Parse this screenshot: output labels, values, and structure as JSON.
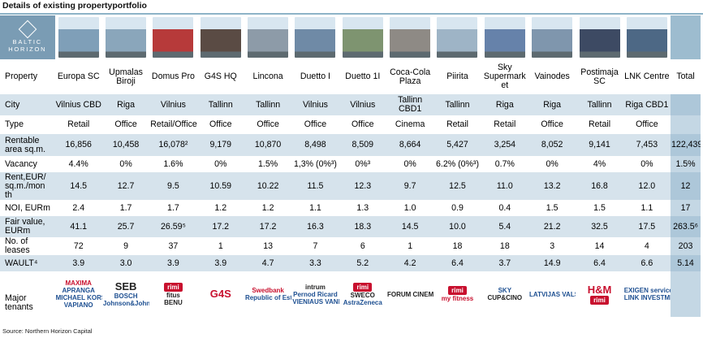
{
  "title": "Details of existing propertyportfolio",
  "brand": {
    "line1": "BALTIC",
    "line2": "HORIZON"
  },
  "header": {
    "label": "Property",
    "properties": [
      "Europa SC",
      "Upmalas Biroji",
      "Domus Pro",
      "G4S HQ",
      "Lincona",
      "Duetto I",
      "Duetto 1I",
      "Coca-Cola Plaza",
      "Piirita",
      "Sky Supermark et",
      "Vainodes",
      "Postimaja SC",
      "LNK Centre"
    ],
    "total": "Total"
  },
  "thumb_colors": [
    "#7f9fb8",
    "#8aa6bb",
    "#b73a3a",
    "#5a4b44",
    "#8d9ba8",
    "#6f8aa6",
    "#7e9470",
    "#8e8a85",
    "#9eb4c6",
    "#6682aa",
    "#7f96ad",
    "#3d4a63",
    "#4d6885"
  ],
  "rows": [
    {
      "label": "City",
      "values": [
        "Vilnius CBD",
        "Riga",
        "Vilnius",
        "Tallinn",
        "Tallinn",
        "Vilnius",
        "Vilnius",
        "Tallinn CBD1",
        "Tallinn",
        "Riga",
        "Riga",
        "Tallinn",
        "Riga CBD1"
      ],
      "total": ""
    },
    {
      "label": "Type",
      "values": [
        "Retail",
        "Office",
        "Retail/Office",
        "Office",
        "Office",
        "Office",
        "Office",
        "Cinema",
        "Retail",
        "Retail",
        "Office",
        "Retail",
        "Office"
      ],
      "total": ""
    },
    {
      "label": "Rentable area sq.m.",
      "values": [
        "16,856",
        "10,458",
        "16,078²",
        "9,179",
        "10,870",
        "8,498",
        "8,509",
        "8,664",
        "5,427",
        "3,254",
        "8,052",
        "9,141",
        "7,453"
      ],
      "total": "122,439"
    },
    {
      "label": "Vacancy",
      "values": [
        "4.4%",
        "0%",
        "1.6%",
        "0%",
        "1.5%",
        "1,3% (0%³)",
        "0%³",
        "0%",
        "6.2% (0%³)",
        "0.7%",
        "0%",
        "4%",
        "0%"
      ],
      "total": "1.5%"
    },
    {
      "label": "Rent,EUR/ sq.m./mon th",
      "values": [
        "14.5",
        "12.7",
        "9.5",
        "10.59",
        "10.22",
        "11.5",
        "12.3",
        "9.7",
        "12.5",
        "11.0",
        "13.2",
        "16.8",
        "12.0"
      ],
      "total": "12"
    },
    {
      "label": "NOI, EURm",
      "values": [
        "2.4",
        "1.7",
        "1.7",
        "1.2",
        "1.2",
        "1.1",
        "1.3",
        "1.0",
        "0.9",
        "0.4",
        "1.5",
        "1.5",
        "1.1"
      ],
      "total": "17"
    },
    {
      "label": "Fair value, EURm",
      "values": [
        "41.1",
        "25.7",
        "26.59⁵",
        "17.2",
        "17.2",
        "16.3",
        "18.3",
        "14.5",
        "10.0",
        "5.4",
        "21.2",
        "32.5",
        "17.5"
      ],
      "total": "263.5⁶"
    },
    {
      "label": "No. of leases",
      "values": [
        "72",
        "9",
        "37",
        "1",
        "13",
        "7",
        "6",
        "1",
        "18",
        "18",
        "3",
        "14",
        "4"
      ],
      "total": "203"
    },
    {
      "label": "WAULT⁴",
      "values": [
        "3.9",
        "3.0",
        "3.9",
        "3.9",
        "4.7",
        "3.3",
        "5.2",
        "4.2",
        "6.4",
        "3.7",
        "14.9",
        "6.4",
        "6.6"
      ],
      "total": "5.14"
    }
  ],
  "tenants_label": "Major tenants",
  "tenants": [
    [
      "MAXIMA",
      "APRANGA",
      "MICHAEL KORS",
      "VAPIANO"
    ],
    [
      "SEB",
      "BOSCH",
      "Johnson&Johnson"
    ],
    [
      "rimi",
      "fitus",
      "BENU"
    ],
    [
      "G4S"
    ],
    [
      "Swedbank",
      "Republic of Estonia"
    ],
    [
      "intrum",
      "Pernod Ricard",
      "VIENIAUS VANDENYS"
    ],
    [
      "rimi",
      "SWECO",
      "AstraZeneca"
    ],
    [
      "FORUM CINEMAS"
    ],
    [
      "rimi",
      "my fitness"
    ],
    [
      "SKY",
      "CUP&CINO"
    ],
    [
      "LATVIJAS VALSTS MEŽI"
    ],
    [
      "H&M",
      "rimi"
    ],
    [
      "EXIGEN services",
      "LINK INVESTMENTS"
    ]
  ],
  "footer": "Source: Northern Horizon Capital"
}
